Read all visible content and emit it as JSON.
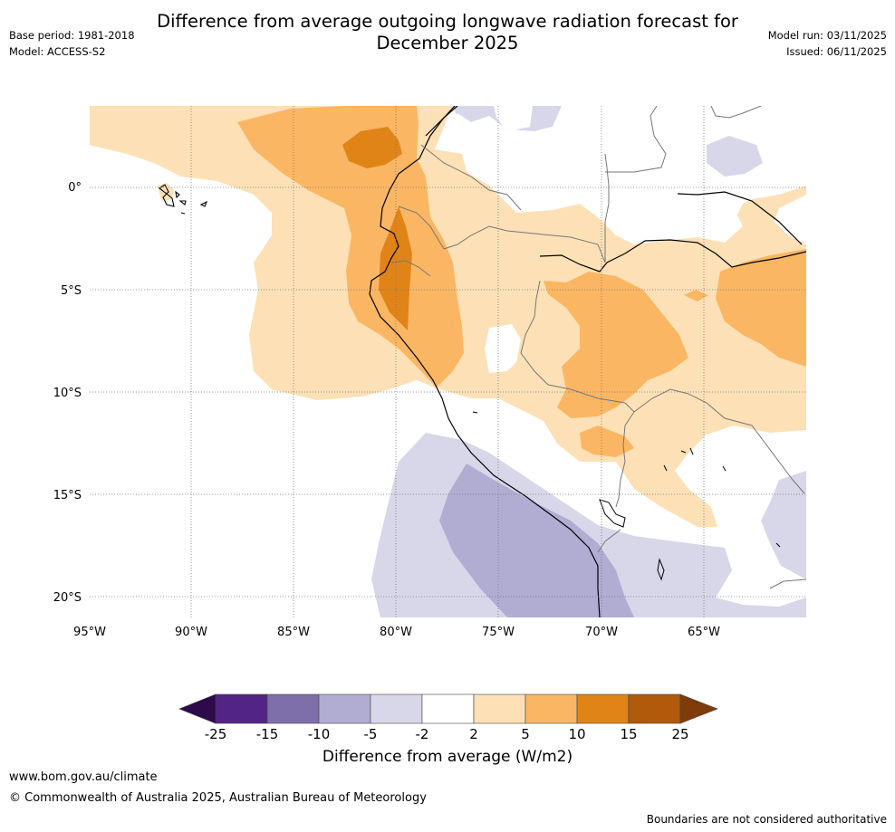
{
  "title_line1": "Difference from average outgoing longwave radiation forecast for",
  "title_line2": "December 2025",
  "meta": {
    "base_period": "Base period: 1981-2018",
    "model": "Model: ACCESS-S2",
    "model_run": "Model run: 03/11/2025",
    "issued": "Issued: 06/11/2025"
  },
  "map": {
    "lon_range": [
      -95,
      -60
    ],
    "lat_range": [
      -21,
      4
    ],
    "lon_ticks": [
      {
        "value": -95,
        "label": "95°W"
      },
      {
        "value": -90,
        "label": "90°W"
      },
      {
        "value": -85,
        "label": "85°W"
      },
      {
        "value": -80,
        "label": "80°W"
      },
      {
        "value": -75,
        "label": "75°W"
      },
      {
        "value": -70,
        "label": "70°W"
      },
      {
        "value": -65,
        "label": "65°W"
      }
    ],
    "lat_ticks": [
      {
        "value": 0,
        "label": "0°"
      },
      {
        "value": -5,
        "label": "5°S"
      },
      {
        "value": -10,
        "label": "10°S"
      },
      {
        "value": -15,
        "label": "15°S"
      },
      {
        "value": -20,
        "label": "20°S"
      }
    ]
  },
  "colorbar": {
    "title": "Difference from average (W/m2)",
    "levels": [
      "-25",
      "-15",
      "-10",
      "-5",
      "-2",
      "2",
      "5",
      "10",
      "15",
      "25"
    ],
    "colors": [
      "#512485",
      "#7e6ea9",
      "#b1acd2",
      "#d8d7e9",
      "#ffffff",
      "#fde0b5",
      "#fbb663",
      "#e08418",
      "#b15a0b"
    ],
    "under_color": "#2d0b4b",
    "over_color": "#7f3b08"
  },
  "palette": {
    "light_orange": "#fde0b5",
    "orange": "#fbb663",
    "dark_orange": "#e08418",
    "light_purple": "#d8d7e9",
    "purple": "#b1acd2"
  },
  "footer": {
    "website": "www.bom.gov.au/climate",
    "copyright": "© Commonwealth of Australia 2025, Australian Bureau of Meteorology",
    "disclaimer": "Boundaries are not considered authoritative"
  }
}
